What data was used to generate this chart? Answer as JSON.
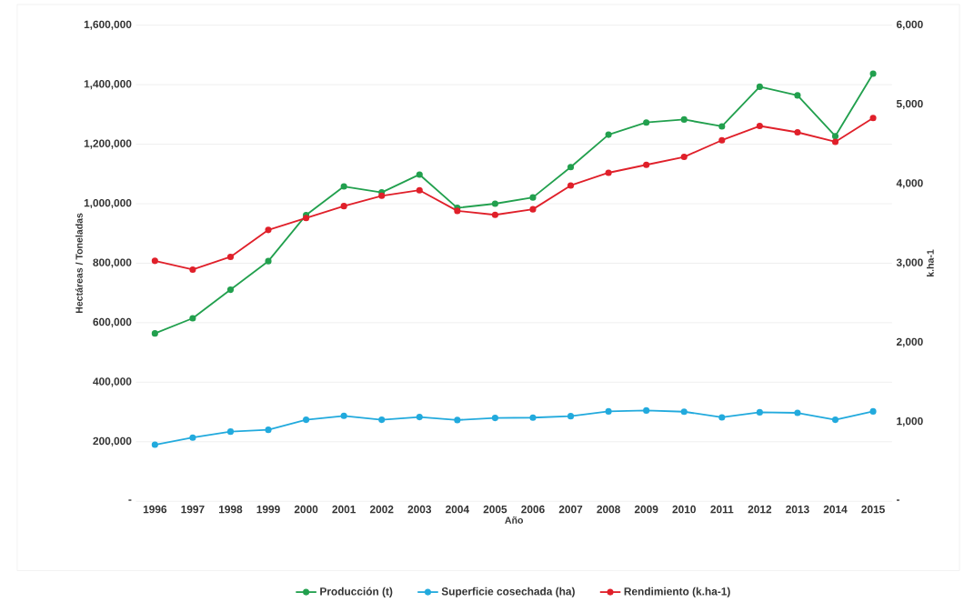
{
  "chart_data": {
    "type": "line",
    "xlabel": "Año",
    "ylabel": "Hectáreas   /   Toneladas",
    "y2label": "k.ha-1",
    "categories": [
      "1996",
      "1997",
      "1998",
      "1999",
      "2000",
      "2001",
      "2002",
      "2003",
      "2004",
      "2005",
      "2006",
      "2007",
      "2008",
      "2009",
      "2010",
      "2011",
      "2012",
      "2013",
      "2014",
      "2015"
    ],
    "series": [
      {
        "name": "Producción (t)",
        "color": "#22a04e",
        "values": [
          564000,
          615000,
          711000,
          807000,
          962000,
          1058000,
          1038000,
          1098000,
          986000,
          1000000,
          1021000,
          1123000,
          1232000,
          1273000,
          1283000,
          1260000,
          1393000,
          1364000,
          1227000,
          1437000
        ]
      },
      {
        "name": "Superficie cosechada (ha)",
        "color": "#22aadd",
        "values": [
          190000,
          214000,
          234000,
          240000,
          274000,
          287000,
          274000,
          283000,
          273000,
          280000,
          281000,
          286000,
          302000,
          305000,
          301000,
          282000,
          299000,
          297000,
          274000,
          302000
        ]
      },
      {
        "name": "Rendimiento (k.ha-1)",
        "color": "#e0202a",
        "axis": "y2",
        "values": [
          3030,
          2920,
          3080,
          3420,
          3570,
          3720,
          3850,
          3920,
          3660,
          3610,
          3680,
          3980,
          4140,
          4240,
          4340,
          4550,
          4730,
          4650,
          4530,
          4830
        ]
      }
    ],
    "ylim": [
      0,
      1600000
    ],
    "yticks": [
      {
        "value": 0,
        "label": "-"
      },
      {
        "value": 200000,
        "label": "200,000"
      },
      {
        "value": 400000,
        "label": "400,000"
      },
      {
        "value": 600000,
        "label": "600,000"
      },
      {
        "value": 800000,
        "label": "800,000"
      },
      {
        "value": 1000000,
        "label": "1,000,000"
      },
      {
        "value": 1200000,
        "label": "1,200,000"
      },
      {
        "value": 1400000,
        "label": "1,400,000"
      },
      {
        "value": 1600000,
        "label": "1,600,000"
      }
    ],
    "y2lim": [
      0,
      6000
    ],
    "y2ticks": [
      {
        "value": 0,
        "label": "-"
      },
      {
        "value": 1000,
        "label": "1,000"
      },
      {
        "value": 2000,
        "label": "2,000"
      },
      {
        "value": 3000,
        "label": "3,000"
      },
      {
        "value": 4000,
        "label": "4,000"
      },
      {
        "value": 5000,
        "label": "5,000"
      },
      {
        "value": 6000,
        "label": "6,000"
      }
    ],
    "grid": "y",
    "legend": "bottom",
    "marker": "circle",
    "line_style": "solid"
  }
}
